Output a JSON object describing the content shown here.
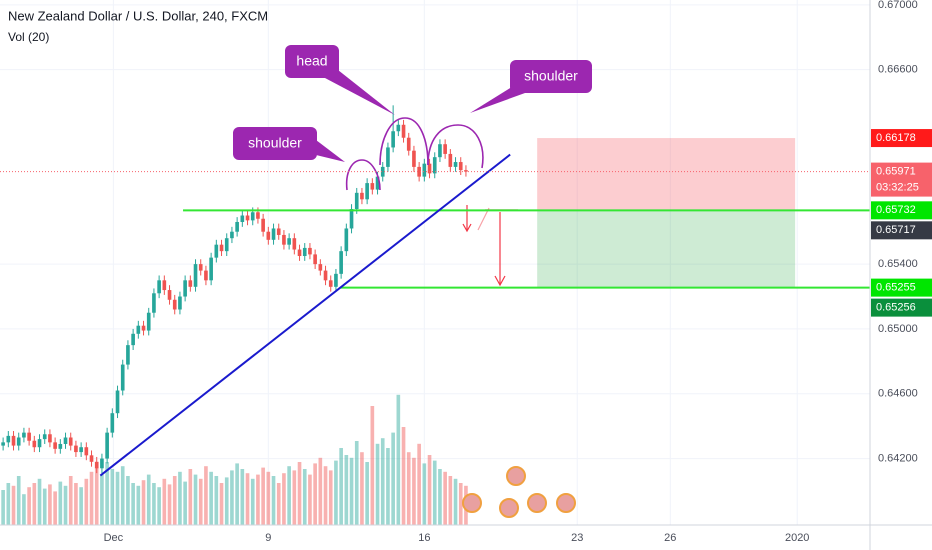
{
  "chart_data": {
    "type": "candlestick",
    "title": "New Zealand Dollar / U.S. Dollar, 240, FXCM",
    "subtitle": "Vol (20)",
    "xlim": [
      -0.6,
      166.7
    ],
    "ylim": [
      0.6379,
      0.6703
    ],
    "xticks": [
      {
        "value": 21.2,
        "label": "Dec"
      },
      {
        "value": 51,
        "label": "9"
      },
      {
        "value": 81,
        "label": "16"
      },
      {
        "value": 110.4,
        "label": "23"
      },
      {
        "value": 128.3,
        "label": "26"
      },
      {
        "value": 152.7,
        "label": "2020"
      }
    ],
    "yticks": [
      {
        "value": 0.67,
        "label": "0.67000"
      },
      {
        "value": 0.666,
        "label": "0.66600"
      },
      {
        "value": 0.654,
        "label": "0.65400"
      },
      {
        "value": 0.65,
        "label": "0.65000"
      },
      {
        "value": 0.646,
        "label": "0.64600"
      },
      {
        "value": 0.642,
        "label": "0.64200"
      }
    ],
    "grid": true,
    "up_color": "#26a69a",
    "down_color": "#ef5350",
    "open": [
      0.6428,
      0.643,
      0.6434,
      0.6428,
      0.6433,
      0.6436,
      0.6431,
      0.6427,
      0.6432,
      0.6435,
      0.643,
      0.6426,
      0.6429,
      0.6433,
      0.6428,
      0.6424,
      0.6427,
      0.6422,
      0.6418,
      0.6414,
      0.642,
      0.6436,
      0.6448,
      0.6462,
      0.6478,
      0.649,
      0.6497,
      0.6502,
      0.6499,
      0.651,
      0.6522,
      0.653,
      0.6524,
      0.6518,
      0.6512,
      0.652,
      0.653,
      0.6526,
      0.654,
      0.6536,
      0.653,
      0.6544,
      0.6552,
      0.6548,
      0.6556,
      0.656,
      0.6566,
      0.657,
      0.6567,
      0.6572,
      0.6568,
      0.656,
      0.6555,
      0.6562,
      0.6558,
      0.6552,
      0.6556,
      0.6549,
      0.6545,
      0.655,
      0.6546,
      0.654,
      0.6536,
      0.653,
      0.6526,
      0.6534,
      0.6548,
      0.6562,
      0.6574,
      0.6584,
      0.658,
      0.659,
      0.6586,
      0.6594,
      0.66,
      0.6612,
      0.6622,
      0.6626,
      0.6618,
      0.661,
      0.66,
      0.6594,
      0.6602,
      0.6596,
      0.6606,
      0.6614,
      0.6608,
      0.66,
      0.6603,
      0.6598
    ],
    "high": [
      0.6433,
      0.6437,
      0.6437,
      0.6436,
      0.6439,
      0.6439,
      0.6434,
      0.6435,
      0.6438,
      0.6438,
      0.6433,
      0.6432,
      0.6436,
      0.6436,
      0.6431,
      0.643,
      0.643,
      0.6425,
      0.6421,
      0.6423,
      0.6439,
      0.6451,
      0.6465,
      0.6481,
      0.6493,
      0.65,
      0.6505,
      0.6505,
      0.6513,
      0.6525,
      0.6533,
      0.6533,
      0.6527,
      0.6521,
      0.6523,
      0.6533,
      0.6533,
      0.6543,
      0.6543,
      0.6539,
      0.6547,
      0.6555,
      0.6555,
      0.6559,
      0.6563,
      0.6569,
      0.6573,
      0.6573,
      0.6575,
      0.6575,
      0.6571,
      0.6563,
      0.6565,
      0.6565,
      0.6561,
      0.6559,
      0.6559,
      0.6552,
      0.6553,
      0.6553,
      0.6549,
      0.6543,
      0.6539,
      0.6533,
      0.6537,
      0.6551,
      0.6565,
      0.6577,
      0.6587,
      0.6587,
      0.6593,
      0.6593,
      0.6597,
      0.6603,
      0.6615,
      0.6638,
      0.6629,
      0.6629,
      0.6621,
      0.6613,
      0.6603,
      0.6605,
      0.6605,
      0.6609,
      0.6617,
      0.6617,
      0.6611,
      0.6606,
      0.6606,
      0.6601
    ],
    "low": [
      0.6425,
      0.6427,
      0.6425,
      0.6425,
      0.643,
      0.6428,
      0.6424,
      0.6424,
      0.6429,
      0.6427,
      0.6423,
      0.6423,
      0.6426,
      0.6425,
      0.6421,
      0.6421,
      0.6419,
      0.6415,
      0.6411,
      0.6411,
      0.6417,
      0.6433,
      0.6445,
      0.6459,
      0.6475,
      0.6487,
      0.6494,
      0.6496,
      0.6496,
      0.6507,
      0.6519,
      0.6521,
      0.6515,
      0.6509,
      0.6509,
      0.6517,
      0.6523,
      0.6523,
      0.6533,
      0.6527,
      0.6527,
      0.6541,
      0.6545,
      0.6545,
      0.6553,
      0.6557,
      0.6563,
      0.6564,
      0.6564,
      0.6565,
      0.6557,
      0.6552,
      0.6552,
      0.6555,
      0.6549,
      0.6549,
      0.6546,
      0.6542,
      0.6542,
      0.6543,
      0.6537,
      0.6533,
      0.6527,
      0.6523,
      0.6523,
      0.6531,
      0.6545,
      0.6559,
      0.6571,
      0.6577,
      0.6577,
      0.6583,
      0.6583,
      0.6591,
      0.6597,
      0.6609,
      0.6619,
      0.6615,
      0.6607,
      0.6597,
      0.6591,
      0.6591,
      0.6593,
      0.6593,
      0.6603,
      0.6605,
      0.6597,
      0.6597,
      0.6595,
      0.6594
    ],
    "close": [
      0.643,
      0.6434,
      0.6428,
      0.6433,
      0.6436,
      0.6431,
      0.6427,
      0.6432,
      0.6435,
      0.643,
      0.6426,
      0.6429,
      0.6433,
      0.6428,
      0.6424,
      0.6427,
      0.6422,
      0.6418,
      0.6414,
      0.642,
      0.6436,
      0.6448,
      0.6462,
      0.6478,
      0.649,
      0.6497,
      0.6502,
      0.6499,
      0.651,
      0.6522,
      0.653,
      0.6524,
      0.6518,
      0.6512,
      0.652,
      0.653,
      0.6526,
      0.654,
      0.6536,
      0.653,
      0.6544,
      0.6552,
      0.6548,
      0.6556,
      0.656,
      0.6566,
      0.657,
      0.6567,
      0.6572,
      0.6568,
      0.656,
      0.6555,
      0.6562,
      0.6558,
      0.6552,
      0.6556,
      0.6549,
      0.6545,
      0.655,
      0.6546,
      0.654,
      0.6536,
      0.653,
      0.6526,
      0.6534,
      0.6548,
      0.6562,
      0.6574,
      0.6584,
      0.658,
      0.659,
      0.6586,
      0.6594,
      0.66,
      0.6612,
      0.6622,
      0.6626,
      0.6618,
      0.661,
      0.66,
      0.6594,
      0.6602,
      0.6596,
      0.6606,
      0.6614,
      0.6608,
      0.66,
      0.6603,
      0.6598,
      0.65971
    ],
    "volume": [
      25,
      30,
      28,
      35,
      22,
      27,
      30,
      33,
      26,
      29,
      24,
      31,
      28,
      35,
      30,
      27,
      33,
      38,
      41,
      36,
      45,
      40,
      38,
      42,
      35,
      30,
      28,
      32,
      36,
      30,
      27,
      33,
      29,
      35,
      38,
      31,
      40,
      36,
      33,
      42,
      38,
      35,
      30,
      34,
      39,
      44,
      40,
      37,
      33,
      36,
      41,
      38,
      35,
      30,
      37,
      42,
      39,
      45,
      40,
      36,
      44,
      48,
      42,
      39,
      46,
      55,
      50,
      48,
      60,
      52,
      45,
      85,
      58,
      62,
      55,
      66,
      93,
      70,
      52,
      48,
      58,
      44,
      50,
      46,
      40,
      38,
      35,
      33,
      30,
      28
    ],
    "volume_lim": [
      0,
      375
    ],
    "trendline": {
      "x": [
        18.7,
        97.5
      ],
      "y": [
        0.64095,
        0.66076
      ],
      "color": "#1a1acd"
    },
    "levels": [
      {
        "price": 0.65732,
        "start": 34.6,
        "color": "#33e633"
      },
      {
        "price": 0.65255,
        "start": 64.8,
        "color": "#33e633"
      }
    ],
    "position": {
      "start": 102.7,
      "end": 152.3,
      "stop": 0.66178,
      "entry": 0.65732,
      "target": 0.65255
    },
    "price_tags": [
      {
        "value": 0.66178,
        "color": "#ff1a1a"
      },
      {
        "value": 0.65971,
        "color": "#f7626b"
      },
      {
        "value": 0.65732,
        "color": "#00e600"
      },
      {
        "value": 0.65717,
        "color": "#363a45"
      },
      {
        "value": 0.65255,
        "color": "#00e600"
      },
      {
        "value": 0.65256,
        "color": "#0a8f3c"
      }
    ],
    "countdown": "03:32:25",
    "annotations": [
      {
        "text": "shoulder"
      },
      {
        "text": "head"
      },
      {
        "text": "shoulder"
      }
    ]
  }
}
